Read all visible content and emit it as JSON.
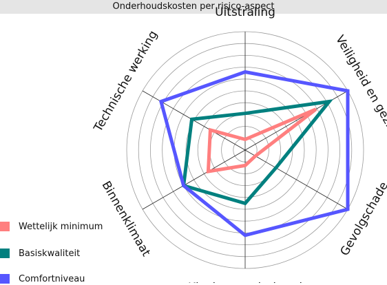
{
  "title": "Onderhoudskosten per risico-aspect",
  "chart_data": {
    "type": "radar",
    "title": "Onderhoudskosten per risico-aspect",
    "axes": [
      "Veiligheid en gez.",
      "Gevolgschade",
      "Klachtenonderhoud",
      "Binnenklimaat",
      "Technische werking",
      "Uitstraling"
    ],
    "rlim": [
      0,
      10
    ],
    "grid_rings": [
      1,
      2,
      3,
      4,
      5,
      6,
      7,
      8,
      9,
      10
    ],
    "grid": true,
    "legend_position": "bottom-left",
    "series": [
      {
        "name": "Wettelijk minimum",
        "color": "#ff7f7f",
        "values": [
          6.9,
          1.0,
          1.3,
          3.6,
          3.4,
          0.9
        ]
      },
      {
        "name": "Basiskwaliteit",
        "color": "#00807f",
        "values": [
          8.2,
          3.0,
          4.5,
          6.0,
          5.2,
          3.1
        ]
      },
      {
        "name": "Comfortniveau",
        "color": "#5656ff",
        "values": [
          10.0,
          10.0,
          7.2,
          6.0,
          8.2,
          6.6
        ]
      }
    ]
  }
}
